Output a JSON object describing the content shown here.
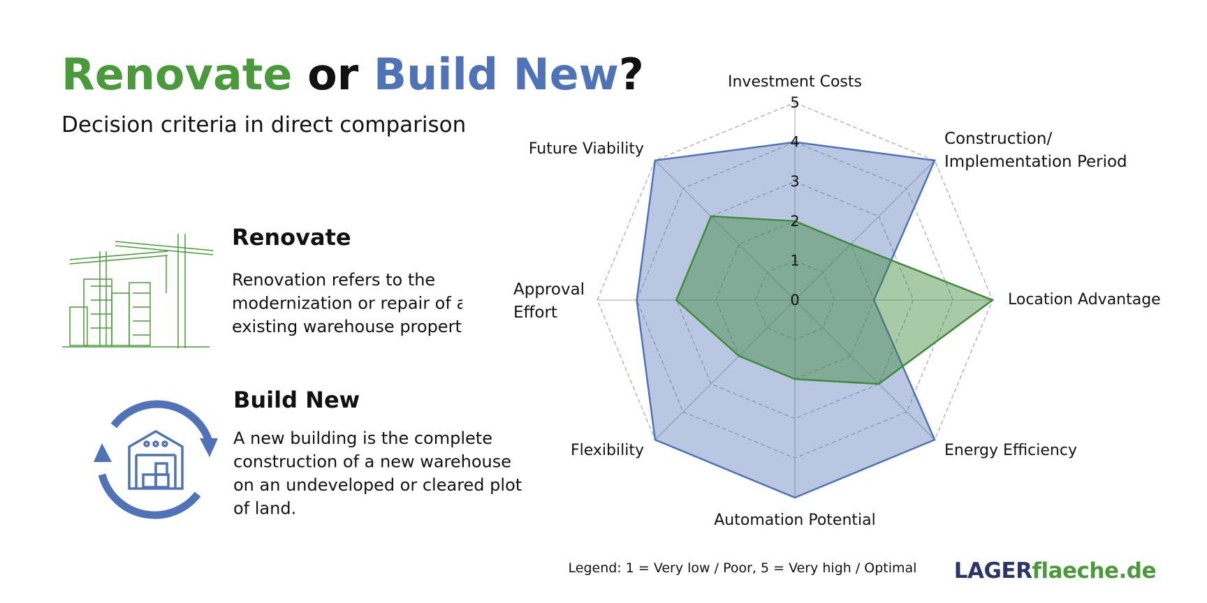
{
  "header": {
    "title": [
      {
        "text": "Renovate",
        "color": "#4a9a3b"
      },
      {
        "text": "or",
        "color": "#111111"
      },
      {
        "text": "Build New",
        "color": "#4f73b6"
      },
      {
        "text": "?",
        "color": "#111111"
      }
    ],
    "subtitle": "Decision criteria in direct comparison"
  },
  "sections": [
    {
      "heading": "Renovate",
      "lines": [
        "Renovation refers to the",
        "modernization or repair of an",
        "existing warehouse property."
      ]
    },
    {
      "heading": "Build New",
      "lines": [
        "A new building is the complete",
        "construction of a new warehouse",
        "on an undeveloped or cleared plot",
        "of land."
      ]
    }
  ],
  "chart_data": {
    "type": "radar",
    "categories": [
      "Investment Costs",
      [
        "Construction/",
        "Implementation Period"
      ],
      "Location Advantage",
      "Energy Efficiency",
      "Automation Potential",
      "Flexibility",
      [
        "Approval",
        "Effort"
      ],
      "Future Viability"
    ],
    "series": [
      {
        "name": "Build New",
        "color": "#4f73b6",
        "values": [
          4,
          5,
          2,
          5,
          5,
          5,
          4,
          5
        ]
      },
      {
        "name": "Renovate",
        "color": "#3f8a3a",
        "values": [
          2,
          2,
          5,
          3,
          2,
          2,
          3,
          3
        ]
      }
    ],
    "ylim": [
      0,
      5
    ],
    "yticks": [
      0,
      1,
      2,
      3,
      4,
      5
    ],
    "grid": true
  },
  "legend_note": "Legend: 1 = Very low / Poor, 5 = Very high / Optimal",
  "brand": [
    {
      "text": "LAGER",
      "color": "#2b3566"
    },
    {
      "text": "flaeche.de",
      "color": "#4a9a3b"
    }
  ]
}
